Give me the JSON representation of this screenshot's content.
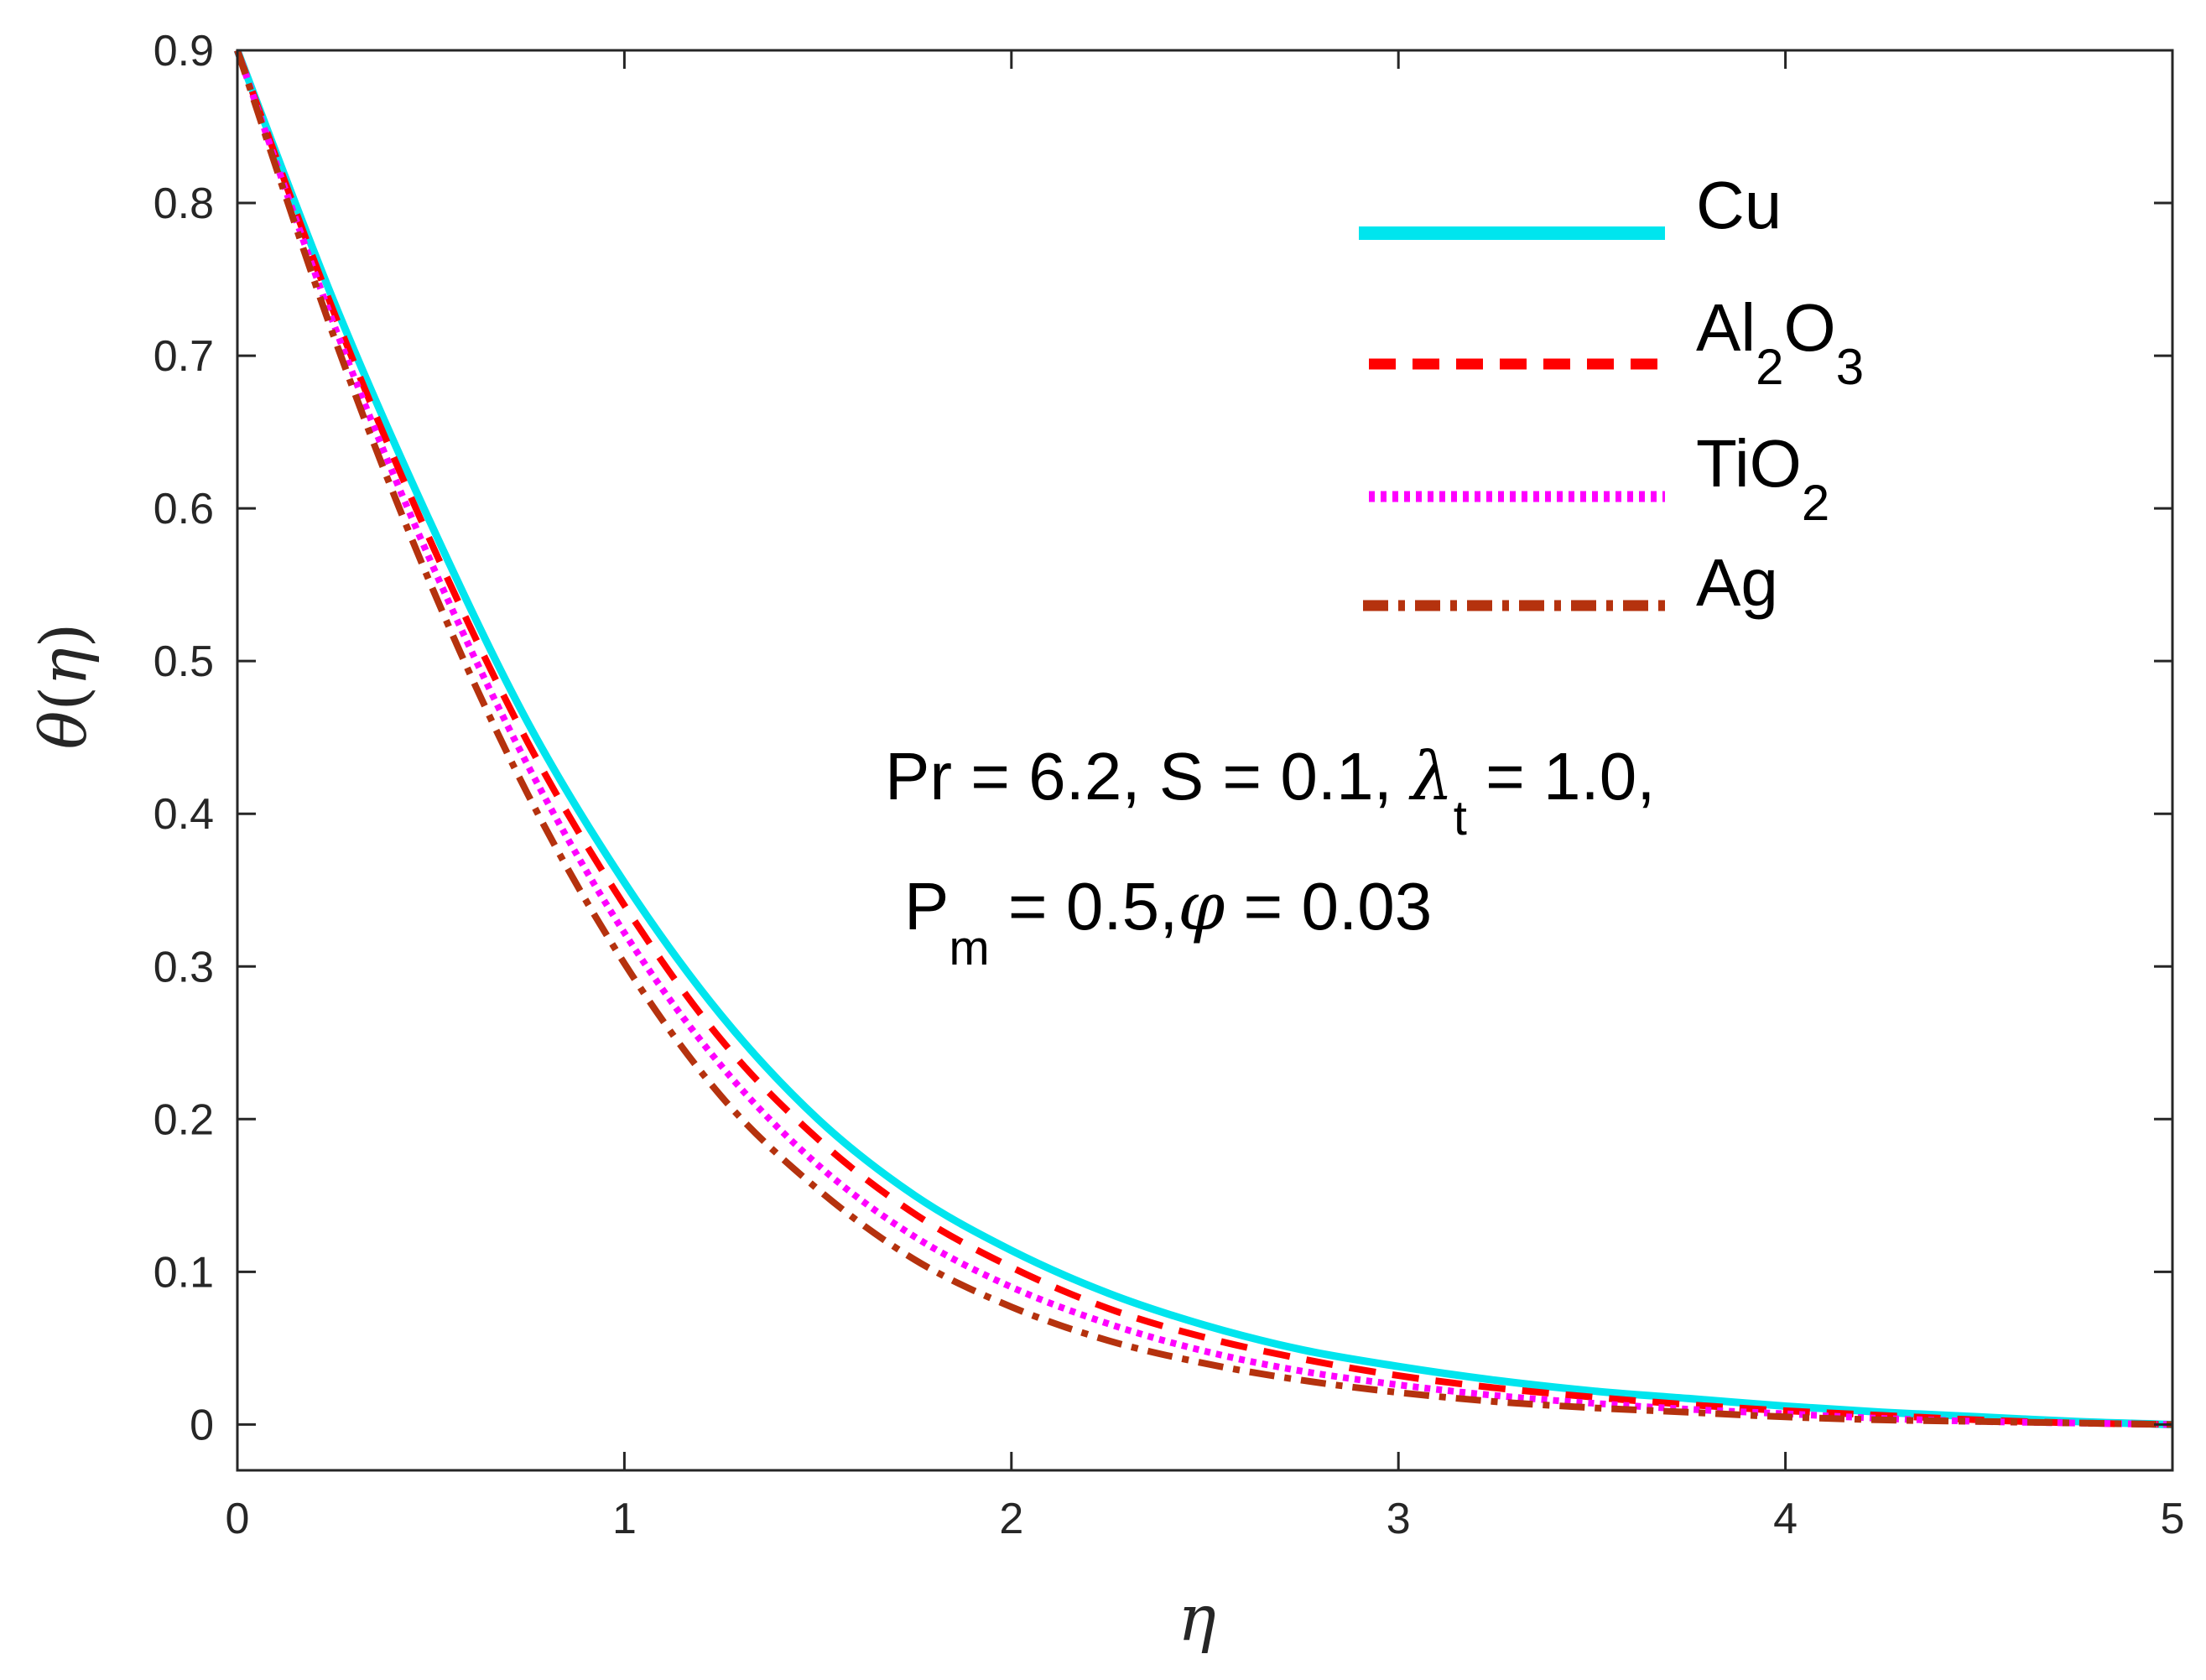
{
  "chart_data": {
    "type": "line",
    "title": "",
    "xlabel": "η",
    "ylabel_symbol": "θ",
    "ylabel_arg": "η",
    "xlim": [
      0,
      5
    ],
    "ylim": [
      -0.03,
      0.9
    ],
    "xticks": [
      0,
      1,
      2,
      3,
      4,
      5
    ],
    "xtick_labels": [
      "0",
      "1",
      "2",
      "3",
      "4",
      "5"
    ],
    "yticks": [
      0,
      0.1,
      0.2,
      0.3,
      0.4,
      0.5,
      0.6,
      0.7,
      0.8,
      0.9
    ],
    "ytick_labels": [
      "0",
      "0.1",
      "0.2",
      "0.3",
      "0.4",
      "0.5",
      "0.6",
      "0.7",
      "0.8",
      "0.9"
    ],
    "grid": false,
    "legend_position": "top-right",
    "x": [
      0,
      0.25,
      0.5,
      0.75,
      1.0,
      1.25,
      1.5,
      1.75,
      2.0,
      2.25,
      2.5,
      2.75,
      3.0,
      3.25,
      3.5,
      3.75,
      4.0,
      4.25,
      4.5,
      4.75,
      5.0
    ],
    "series": [
      {
        "name": "Cu",
        "legend_main": "Cu",
        "legend_subs": [],
        "color": "#00e5ee",
        "style": "solid",
        "values": [
          0.9,
          0.735,
          0.59,
          0.46,
          0.355,
          0.268,
          0.2,
          0.15,
          0.114,
          0.086,
          0.065,
          0.049,
          0.038,
          0.029,
          0.022,
          0.017,
          0.012,
          0.008,
          0.005,
          0.002,
          0.0
        ]
      },
      {
        "name": "Al2O3",
        "legend_main": "Al",
        "legend_subs": [
          "2",
          "O",
          "3"
        ],
        "color": "#ff0000",
        "style": "dashed",
        "values": [
          0.9,
          0.728,
          0.578,
          0.447,
          0.34,
          0.252,
          0.187,
          0.138,
          0.103,
          0.076,
          0.057,
          0.043,
          0.032,
          0.024,
          0.018,
          0.013,
          0.009,
          0.006,
          0.003,
          0.001,
          0.0
        ]
      },
      {
        "name": "TiO2",
        "legend_main": "TiO",
        "legend_subs": [
          "2"
        ],
        "color": "#ff00ff",
        "style": "dotted",
        "values": [
          0.9,
          0.72,
          0.565,
          0.432,
          0.322,
          0.235,
          0.17,
          0.123,
          0.09,
          0.066,
          0.048,
          0.035,
          0.026,
          0.019,
          0.014,
          0.01,
          0.007,
          0.004,
          0.002,
          0.001,
          0.0
        ]
      },
      {
        "name": "Ag",
        "legend_main": "Ag",
        "legend_subs": [],
        "color": "#b5320e",
        "style": "dashdot",
        "values": [
          0.9,
          0.712,
          0.55,
          0.413,
          0.302,
          0.215,
          0.154,
          0.108,
          0.077,
          0.055,
          0.04,
          0.029,
          0.021,
          0.015,
          0.011,
          0.008,
          0.005,
          0.003,
          0.002,
          0.001,
          0.0
        ]
      }
    ],
    "annotations": {
      "line1": {
        "pr": "Pr = 6.2, S = 0.1, ",
        "lambda_symbol": "λ",
        "lambda_sub": "t",
        "lambda_value": " = 1.0,"
      },
      "line2": {
        "p": "P",
        "p_sub": "m",
        "p_value": " = 0.5,",
        "phi_symbol": "φ",
        "phi_value": " = 0.03"
      }
    }
  }
}
